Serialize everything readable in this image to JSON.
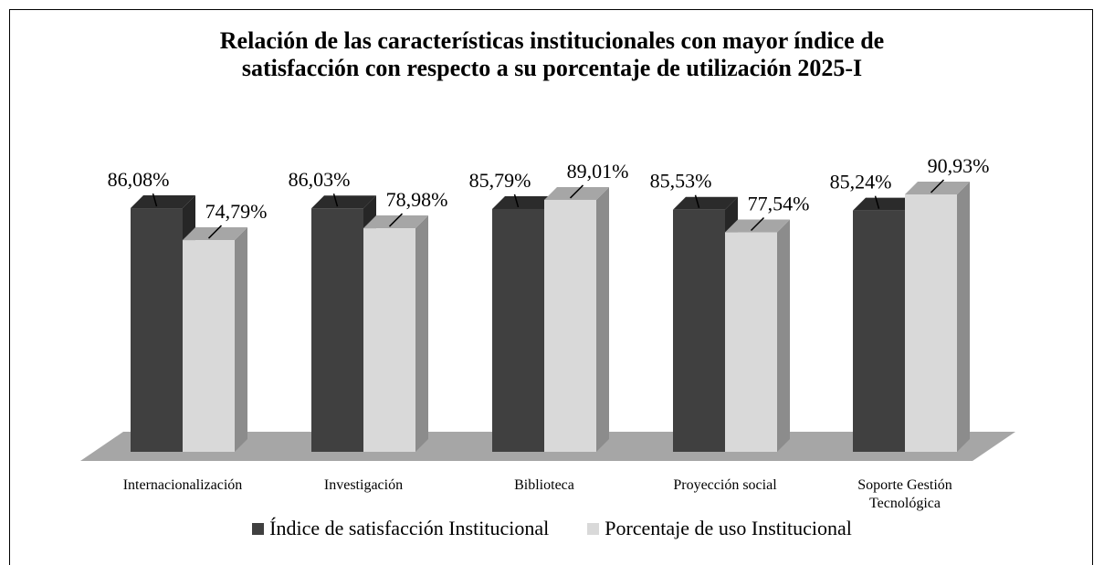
{
  "chart_data": {
    "type": "bar3d",
    "title": "Relación de las características institucionales con mayor índice de satisfacción con respecto a su porcentaje de utilización  2025-I",
    "categories": [
      "Internacionalización",
      "Investigación",
      "Biblioteca",
      "Proyección social",
      "Soporte Gestión Tecnológica"
    ],
    "series": [
      {
        "name": "Índice de satisfacción Institucional",
        "color": "#404040",
        "values": [
          86.08,
          86.03,
          85.79,
          85.53,
          85.24
        ],
        "value_labels": [
          "86,08%",
          "86,03%",
          "85,79%",
          "85,53%",
          "85,24%"
        ]
      },
      {
        "name": "Porcentaje de uso Institucional",
        "color": "#d9d9d9",
        "values": [
          74.79,
          78.98,
          89.01,
          77.54,
          90.93
        ],
        "value_labels": [
          "74,79%",
          "78,98%",
          "89,01%",
          "77,54%",
          "90,93%"
        ]
      }
    ],
    "legend": "bottom"
  }
}
